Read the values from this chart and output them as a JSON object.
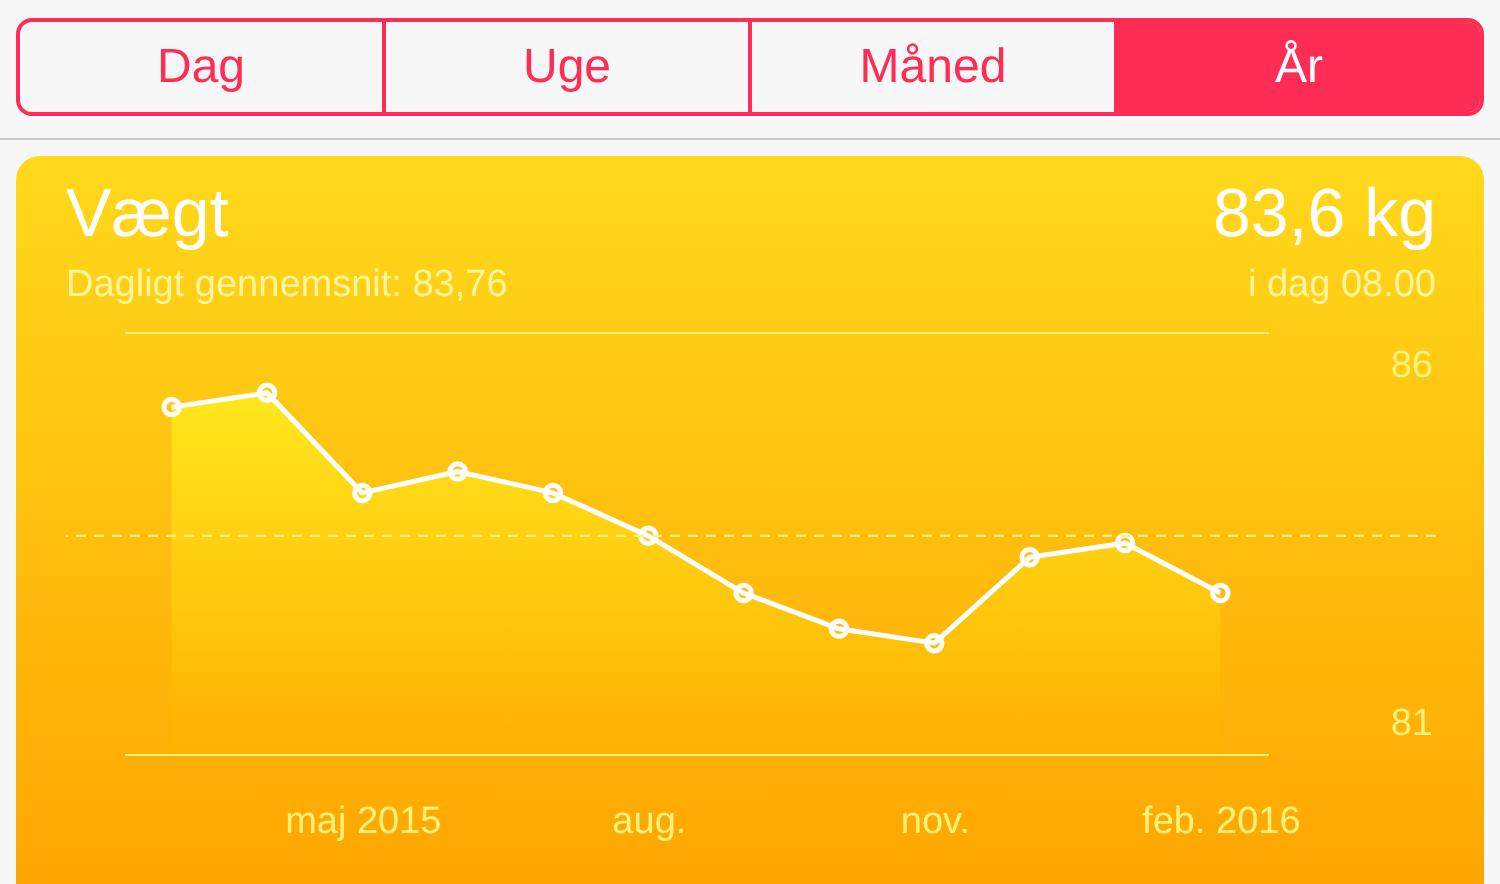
{
  "chart_data": {
    "type": "area",
    "title": "Vægt",
    "subtitle": "Dagligt gennemsnit: 83,76",
    "annotations": [
      "Dag",
      "Uge",
      "Måned",
      "År",
      "83,6 kg",
      "i dag 08.00"
    ],
    "categories": [
      null,
      null,
      "maj 2015",
      null,
      null,
      "aug.",
      null,
      null,
      "nov.",
      null,
      null,
      "feb. 2016"
    ],
    "series": [
      {
        "color": "#ffffff",
        "values": [
          85.4,
          85.6,
          84.2,
          84.5,
          84.2,
          83.6,
          82.8,
          82.3,
          82.1,
          83.3,
          83.5,
          82.8
        ]
      }
    ],
    "ylim": [
      80.55,
      86.45
    ],
    "yticks": [
      81,
      86
    ],
    "ref_lines": [
      {
        "axis": "y",
        "value": 83.6,
        "color": "#fff27a",
        "line_style": "dashed"
      }
    ],
    "marker": "circle"
  }
}
